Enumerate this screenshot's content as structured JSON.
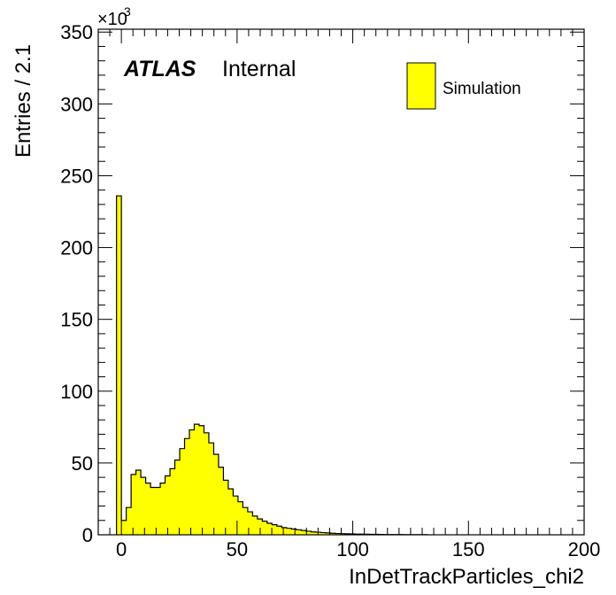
{
  "chart_data": {
    "type": "bar",
    "histogram": true,
    "xlabel": "InDetTrackParticles_chi2",
    "ylabel": "Entries / 2.1",
    "y_multiplier_base": "×10",
    "y_multiplier_exp": "3",
    "xlim": [
      -10,
      200
    ],
    "ylim": [
      0,
      352
    ],
    "bin_width": 2.1,
    "x_start": -2.1,
    "x_ticks": [
      0,
      50,
      100,
      150,
      200
    ],
    "x_tick_labels": [
      "0",
      "50",
      "100",
      "150",
      "200"
    ],
    "y_ticks": [
      0,
      50,
      100,
      150,
      200,
      250,
      300,
      350
    ],
    "y_tick_labels": [
      "0",
      "50",
      "100",
      "150",
      "200",
      "250",
      "300",
      "350"
    ],
    "label_atlas": "ATLAS",
    "label_internal": "Internal",
    "legend": {
      "position": "top-right",
      "entries": [
        "Simulation"
      ]
    },
    "series": [
      {
        "name": "Simulation",
        "fill_color": "#ffff00",
        "line_color": "#000000",
        "values": [
          236,
          10,
          19,
          42,
          45,
          40,
          36,
          33,
          33,
          36,
          41,
          46,
          52,
          60,
          67,
          73,
          77,
          76,
          71,
          64,
          56,
          47,
          38,
          32,
          27,
          23,
          19,
          16,
          13,
          11,
          9.5,
          8,
          7,
          6,
          5,
          4.5,
          4,
          3.5,
          3,
          2.5,
          2,
          1.8,
          1.5,
          1.3,
          1.1,
          0.9,
          0.8,
          0.7,
          0.6,
          0.5,
          0.45,
          0.4,
          0.35,
          0.3,
          0.25,
          0.2,
          0.2,
          0.15,
          0.15,
          0.1,
          0.1,
          0.1,
          0.1,
          0.1
        ]
      }
    ]
  }
}
